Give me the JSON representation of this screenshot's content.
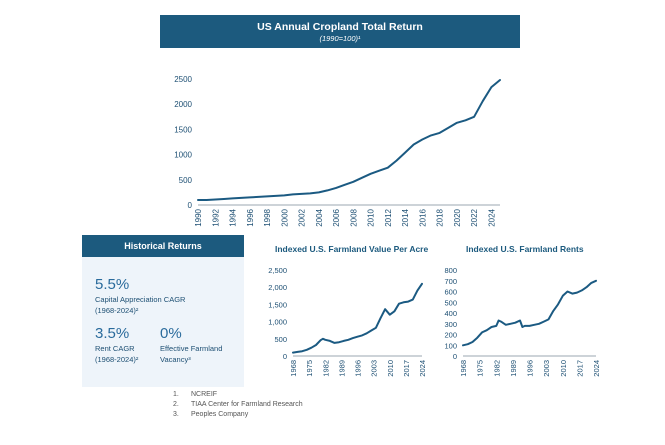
{
  "main_chart": {
    "title": "US Annual Cropland Total Return",
    "subtitle": "(1990=100)¹"
  },
  "historical_returns": {
    "header": "Historical Returns",
    "stats": [
      {
        "value": "5.5%",
        "label_line1": "Capital Appreciation CAGR",
        "label_line2": "(1968-2024)²"
      },
      {
        "value": "3.5%",
        "label_line1": "Rent CAGR",
        "label_line2": "(1968-2024)²"
      },
      {
        "value": "0%",
        "label_line1": "Effective Farmland",
        "label_line2": "Vacancy³"
      }
    ]
  },
  "footnotes": [
    {
      "num": "1.",
      "text": "NCREIF"
    },
    {
      "num": "2.",
      "text": "TIAA Center for Farmland Research"
    },
    {
      "num": "3.",
      "text": "Peoples Company"
    }
  ],
  "colors": {
    "accent": "#1c5a7e",
    "line": "#1b5a82",
    "panel_bg": "#eef4fa"
  },
  "chart_data": [
    {
      "type": "line",
      "title": "US Annual Cropland Total Return",
      "subtitle": "(1990=100)¹",
      "xlabel": "",
      "ylabel": "",
      "ylim": [
        0,
        2500
      ],
      "yticks": [
        0,
        500,
        1000,
        1500,
        2000,
        2500
      ],
      "xticks": [
        1990,
        1992,
        1994,
        1996,
        1998,
        2000,
        2002,
        2004,
        2006,
        2008,
        2010,
        2012,
        2014,
        2016,
        2018,
        2020,
        2022,
        2024
      ],
      "xlim": [
        1990,
        2025
      ],
      "x": [
        1990,
        1991,
        1992,
        1993,
        1994,
        1995,
        1996,
        1997,
        1998,
        1999,
        2000,
        2001,
        2002,
        2003,
        2004,
        2005,
        2006,
        2007,
        2008,
        2009,
        2010,
        2011,
        2012,
        2013,
        2014,
        2015,
        2016,
        2017,
        2018,
        2019,
        2020,
        2021,
        2022,
        2023,
        2024,
        2025
      ],
      "values": [
        100,
        100,
        110,
        120,
        130,
        140,
        150,
        160,
        170,
        180,
        190,
        210,
        220,
        230,
        250,
        290,
        340,
        400,
        460,
        540,
        620,
        680,
        740,
        880,
        1040,
        1200,
        1300,
        1380,
        1430,
        1530,
        1630,
        1680,
        1750,
        2060,
        2340,
        2480
      ]
    },
    {
      "type": "line",
      "title": "Indexed U.S. Farmland Value Per Acre",
      "ylim": [
        0,
        2500
      ],
      "yticks": [
        0,
        500,
        1000,
        1500,
        2000,
        2500
      ],
      "ytick_labels": [
        "0",
        "500",
        "1,000",
        "1,500",
        "2,000",
        "2,500"
      ],
      "xticks": [
        1968,
        1975,
        1982,
        1989,
        1996,
        2003,
        2010,
        2017,
        2024
      ],
      "xlim": [
        1968,
        2024
      ],
      "x": [
        1968,
        1970,
        1972,
        1974,
        1976,
        1978,
        1980,
        1981,
        1982,
        1984,
        1986,
        1988,
        1990,
        1992,
        1994,
        1996,
        1998,
        2000,
        2002,
        2004,
        2006,
        2008,
        2010,
        2012,
        2014,
        2016,
        2018,
        2020,
        2022,
        2024
      ],
      "values": [
        100,
        120,
        140,
        180,
        240,
        320,
        460,
        500,
        470,
        440,
        380,
        400,
        440,
        470,
        520,
        560,
        600,
        660,
        740,
        820,
        1100,
        1360,
        1200,
        1300,
        1520,
        1560,
        1580,
        1640,
        1900,
        2100
      ]
    },
    {
      "type": "line",
      "title": "Indexed U.S. Farmland Rents",
      "ylim": [
        0,
        800
      ],
      "yticks": [
        0,
        100,
        200,
        300,
        400,
        500,
        600,
        700,
        800
      ],
      "xticks": [
        1968,
        1975,
        1982,
        1989,
        1996,
        2003,
        2010,
        2017,
        2024
      ],
      "xlim": [
        1968,
        2024
      ],
      "x": [
        1968,
        1970,
        1972,
        1974,
        1976,
        1978,
        1980,
        1982,
        1983,
        1984,
        1986,
        1988,
        1990,
        1992,
        1993,
        1994,
        1996,
        1998,
        2000,
        2002,
        2004,
        2006,
        2008,
        2010,
        2012,
        2014,
        2016,
        2018,
        2020,
        2022,
        2024
      ],
      "values": [
        100,
        110,
        130,
        170,
        220,
        240,
        270,
        280,
        330,
        320,
        290,
        300,
        310,
        330,
        270,
        280,
        280,
        290,
        300,
        320,
        340,
        420,
        480,
        560,
        600,
        580,
        590,
        610,
        640,
        680,
        700
      ]
    }
  ]
}
